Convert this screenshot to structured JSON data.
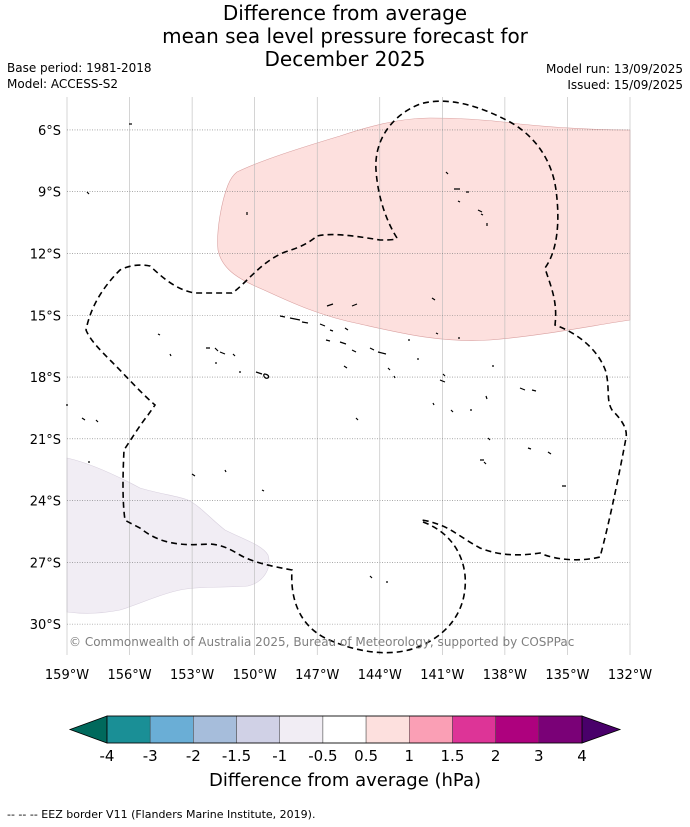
{
  "title": {
    "line1": "Difference from average",
    "line2": "mean sea level pressure forecast for",
    "line3": "December 2025"
  },
  "meta": {
    "base_period": "Base period: 1981-2018",
    "model": "Model: ACCESS-S2",
    "model_run": "Model run: 13/09/2025",
    "issued": "Issued: 15/09/2025"
  },
  "map": {
    "lon_range": [
      -159,
      -132
    ],
    "lat_range": [
      -31.5,
      -4.4
    ],
    "lon_ticks": [
      {
        "value": -159,
        "label": "159°W"
      },
      {
        "value": -156,
        "label": "156°W"
      },
      {
        "value": -153,
        "label": "153°W"
      },
      {
        "value": -150,
        "label": "150°W"
      },
      {
        "value": -147,
        "label": "147°W"
      },
      {
        "value": -144,
        "label": "144°W"
      },
      {
        "value": -141,
        "label": "141°W"
      },
      {
        "value": -138,
        "label": "138°W"
      },
      {
        "value": -135,
        "label": "135°W"
      },
      {
        "value": -132,
        "label": "132°W"
      }
    ],
    "lat_ticks": [
      {
        "value": -6,
        "label": "6°S"
      },
      {
        "value": -9,
        "label": "9°S"
      },
      {
        "value": -12,
        "label": "12°S"
      },
      {
        "value": -15,
        "label": "15°S"
      },
      {
        "value": -18,
        "label": "18°S"
      },
      {
        "value": -21,
        "label": "21°S"
      },
      {
        "value": -24,
        "label": "24°S"
      },
      {
        "value": -27,
        "label": "27°S"
      },
      {
        "value": -30,
        "label": "30°S"
      }
    ],
    "copyright": "© Commonwealth of Australia 2025, Bureau of Meteorology, supported by COSPPac",
    "positive_region_color": "#fde0de",
    "negative_region_color": "#f1edf4",
    "gridlines": "on"
  },
  "colorbar": {
    "title": "Difference from average (hPa)",
    "labels": [
      "-4",
      "-3",
      "-2",
      "-1.5",
      "-1",
      "-0.5",
      "0.5",
      "1",
      "1.5",
      "2",
      "3",
      "4"
    ],
    "colors": [
      "#1a8f96",
      "#6aaed6",
      "#a6bddb",
      "#d0d1e6",
      "#f1edf4",
      "#ffffff",
      "#fde0de",
      "#fa9fb5",
      "#dd3497",
      "#ae017e",
      "#7a0177"
    ],
    "under_color": "#00695c",
    "over_color": "#49006a"
  },
  "footer": "--  --  -- EEZ border V11 (Flanders Marine Institute, 2019)."
}
